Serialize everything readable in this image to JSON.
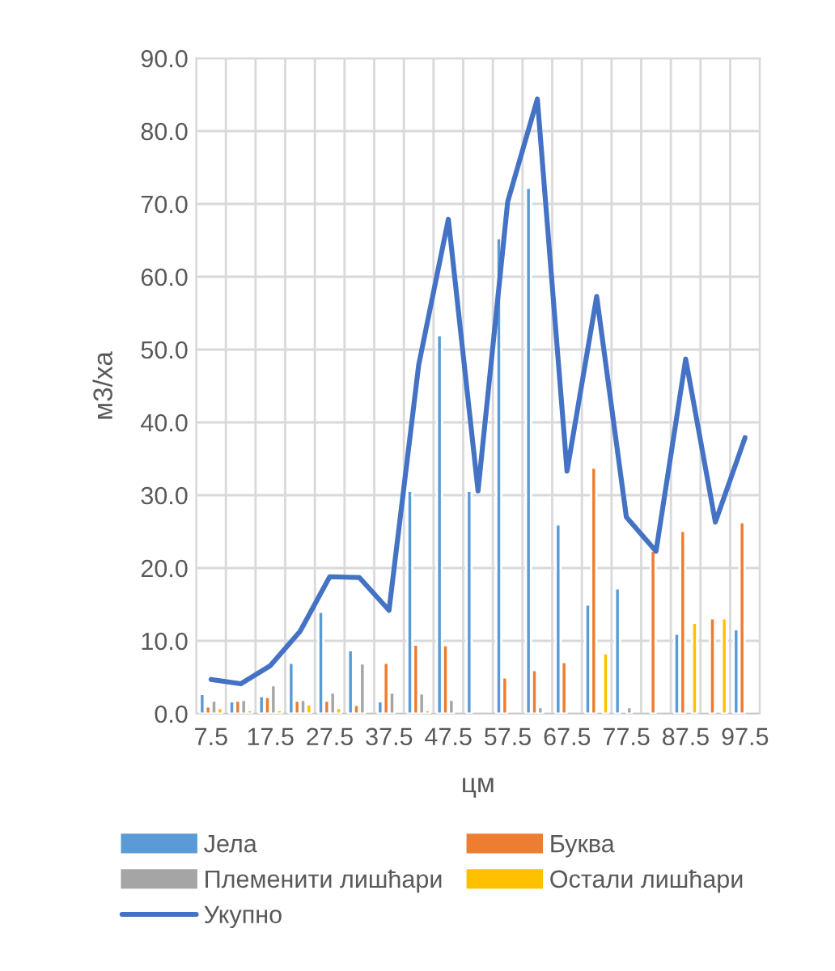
{
  "chart_data": {
    "type": "bar",
    "xlabel": "цм",
    "ylabel": "м3/ха",
    "categories": [
      "7.5",
      null,
      "17.5",
      null,
      "27.5",
      null,
      "37.5",
      null,
      "47.5",
      null,
      "57.5",
      null,
      "67.5",
      null,
      "77.5",
      null,
      "87.5",
      null,
      "97.5"
    ],
    "series": [
      {
        "name": "Јела",
        "color": "#5b9bd5",
        "values": [
          2.7,
          1.7,
          2.4,
          7.0,
          14.0,
          8.7,
          1.7,
          30.6,
          52.0,
          30.6,
          65.3,
          72.2,
          26.0,
          15.0,
          17.2,
          null,
          11.0,
          null,
          11.6
        ]
      },
      {
        "name": "Буква",
        "color": "#ed7d31",
        "values": [
          1.0,
          1.8,
          2.3,
          1.8,
          1.8,
          1.2,
          7.0,
          9.5,
          9.4,
          null,
          5.0,
          6.0,
          7.1,
          33.8,
          null,
          22.4,
          25.1,
          13.1,
          26.3
        ]
      },
      {
        "name": "Племенити лишћари",
        "color": "#a5a5a5",
        "values": [
          1.8,
          1.9,
          3.9,
          1.9,
          2.9,
          6.9,
          2.9,
          2.8,
          1.9,
          null,
          null,
          0.9,
          null,
          null,
          0.9,
          null,
          null,
          null,
          null
        ]
      },
      {
        "name": "Остали лишћари",
        "color": "#ffc000",
        "values": [
          0.8,
          0.5,
          0.5,
          1.3,
          0.8,
          null,
          null,
          0.5,
          null,
          null,
          null,
          null,
          null,
          8.3,
          null,
          null,
          12.5,
          13.1,
          null
        ]
      },
      {
        "name": "Укупно",
        "type": "line",
        "color": "#4472c4",
        "values": [
          4.7,
          4.1,
          6.6,
          11.3,
          18.8,
          18.7,
          14.2,
          47.9,
          67.9,
          30.6,
          70.3,
          84.4,
          33.3,
          57.3,
          27.0,
          22.3,
          48.7,
          26.3,
          37.9
        ]
      }
    ],
    "ylim": [
      0,
      90
    ],
    "yticks": [
      {
        "value": 0,
        "label": "0.0"
      },
      {
        "value": 10,
        "label": "10.0"
      },
      {
        "value": 20,
        "label": "20.0"
      },
      {
        "value": 30,
        "label": "30.0"
      },
      {
        "value": 40,
        "label": "40.0"
      },
      {
        "value": 50,
        "label": "50.0"
      },
      {
        "value": 60,
        "label": "60.0"
      },
      {
        "value": 70,
        "label": "70.0"
      },
      {
        "value": 80,
        "label": "80.0"
      },
      {
        "value": 90,
        "label": "90.0"
      }
    ],
    "grid": true,
    "legend": "bottom"
  }
}
